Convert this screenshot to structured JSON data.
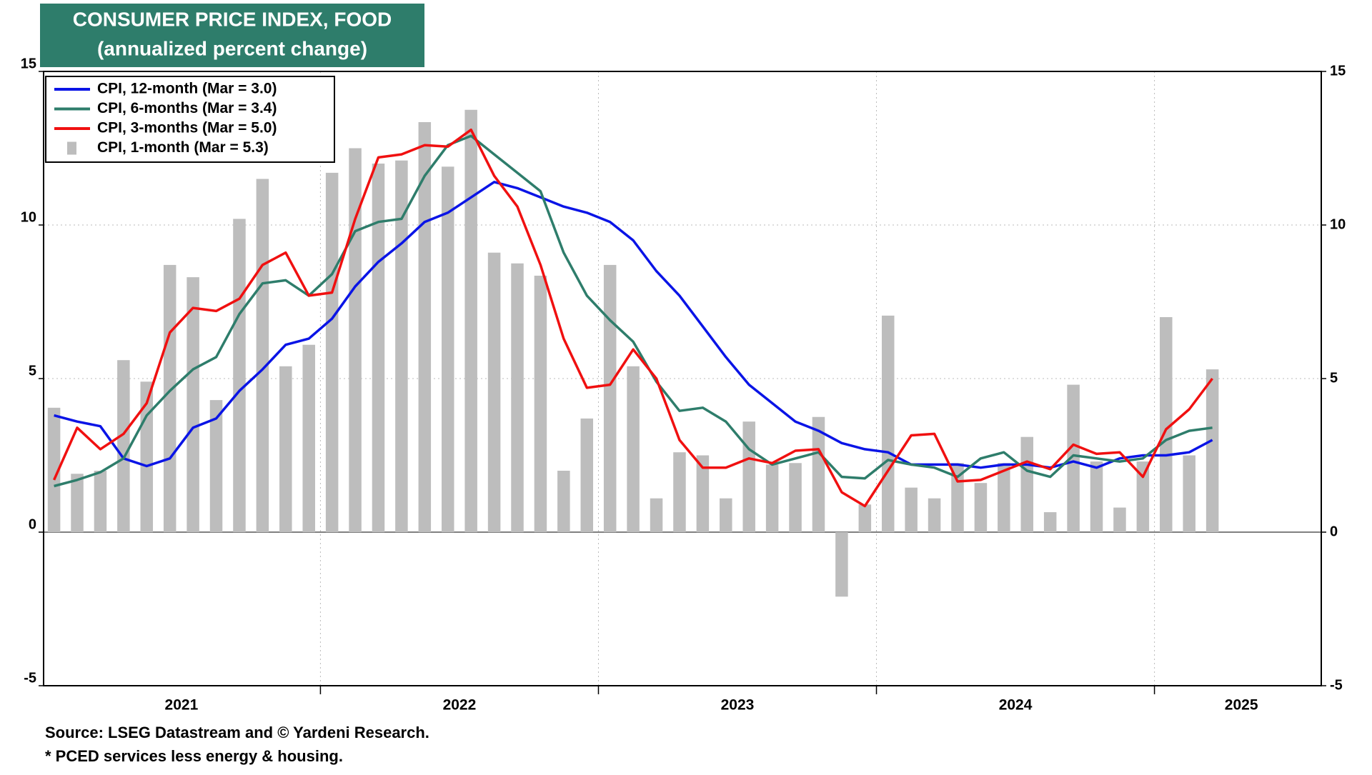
{
  "chart_data": {
    "type": "bar-line",
    "title": "CONSUMER PRICE INDEX, FOOD",
    "subtitle": "(annualized percent change)",
    "source": "Source: LSEG Datastream and © Yardeni Research.",
    "note": "* PCED services less energy & housing.",
    "categories": [
      null,
      null,
      null,
      null,
      null,
      null,
      null,
      null,
      null,
      null,
      null,
      null,
      null,
      null,
      null,
      null,
      null,
      null,
      null,
      null,
      null,
      null,
      null,
      null,
      null,
      null,
      null,
      null,
      null,
      null,
      null,
      null,
      null,
      null,
      null,
      null,
      null,
      null,
      null,
      null,
      null,
      null,
      null,
      null,
      null,
      null,
      null,
      null,
      null,
      null,
      null
    ],
    "xlim": [
      -0.45,
      54.7
    ],
    "xticks": [
      {
        "value": 5.5,
        "label": "2021"
      },
      {
        "value": 17.5,
        "label": "2022"
      },
      {
        "value": 29.5,
        "label": "2023"
      },
      {
        "value": 41.5,
        "label": "2024"
      },
      {
        "value": 51.25,
        "label": "2025"
      }
    ],
    "xgrid": [
      11.5,
      23.5,
      35.5,
      47.5
    ],
    "ylim": [
      -5,
      15
    ],
    "yticks": [
      -5,
      0,
      5,
      10,
      15
    ],
    "grid": true,
    "legend": "upper left",
    "series": [
      {
        "name": "CPI, 12-month (Mar = 3.0)",
        "type": "line",
        "color": "#0a14e6",
        "values": [
          3.8,
          3.6,
          3.45,
          2.4,
          2.15,
          2.4,
          3.4,
          3.7,
          4.6,
          5.3,
          6.1,
          6.3,
          6.95,
          8.0,
          8.8,
          9.4,
          10.1,
          10.4,
          10.9,
          11.4,
          11.2,
          10.9,
          10.6,
          10.4,
          10.1,
          9.5,
          8.5,
          7.7,
          6.7,
          5.7,
          4.8,
          4.2,
          3.6,
          3.3,
          2.9,
          2.7,
          2.6,
          2.2,
          2.2,
          2.2,
          2.1,
          2.2,
          2.2,
          2.1,
          2.3,
          2.1,
          2.4,
          2.5,
          2.5,
          2.6,
          3.0
        ]
      },
      {
        "name": "CPI, 6-months (Mar = 3.4)",
        "type": "line",
        "color": "#2e7d6b",
        "values": [
          1.5,
          1.7,
          1.95,
          2.4,
          3.8,
          4.6,
          5.3,
          5.7,
          7.1,
          8.1,
          8.2,
          7.7,
          8.4,
          9.8,
          10.1,
          10.2,
          11.6,
          12.6,
          12.9,
          12.3,
          11.7,
          11.1,
          9.1,
          7.7,
          6.9,
          6.2,
          4.9,
          3.95,
          4.05,
          3.6,
          2.7,
          2.2,
          2.4,
          2.6,
          1.8,
          1.75,
          2.35,
          2.2,
          2.1,
          1.8,
          2.4,
          2.6,
          2.0,
          1.8,
          2.5,
          2.4,
          2.3,
          2.4,
          3.0,
          3.3,
          3.4
        ]
      },
      {
        "name": "CPI, 3-months (Mar = 5.0)",
        "type": "line",
        "color": "#f01010",
        "values": [
          1.7,
          3.4,
          2.7,
          3.2,
          4.2,
          6.5,
          7.3,
          7.2,
          7.6,
          8.7,
          9.1,
          7.7,
          7.8,
          10.2,
          12.2,
          12.3,
          12.6,
          12.55,
          13.1,
          11.6,
          10.6,
          8.7,
          6.3,
          4.7,
          4.8,
          5.95,
          5.0,
          3.0,
          2.1,
          2.1,
          2.4,
          2.25,
          2.65,
          2.7,
          1.3,
          0.85,
          2.0,
          3.15,
          3.2,
          1.65,
          1.7,
          2.0,
          2.3,
          2.05,
          2.85,
          2.55,
          2.6,
          1.8,
          3.35,
          4.0,
          5.0
        ]
      },
      {
        "name": "CPI, 1-month (Mar = 5.3)",
        "type": "bar",
        "color": "#bdbdbd",
        "values": [
          4.05,
          1.9,
          2.0,
          5.6,
          4.9,
          8.7,
          8.3,
          4.3,
          10.2,
          11.5,
          5.4,
          6.1,
          11.7,
          12.5,
          12.0,
          12.1,
          13.35,
          11.9,
          13.75,
          9.1,
          8.75,
          8.35,
          2.0,
          3.7,
          8.7,
          5.4,
          1.1,
          2.6,
          2.5,
          1.1,
          3.6,
          2.2,
          2.25,
          3.75,
          -2.1,
          0.9,
          7.05,
          1.45,
          1.1,
          2.25,
          1.6,
          2.25,
          3.1,
          0.65,
          4.8,
          2.3,
          0.8,
          2.3,
          7.0,
          2.5,
          5.3
        ]
      }
    ]
  }
}
